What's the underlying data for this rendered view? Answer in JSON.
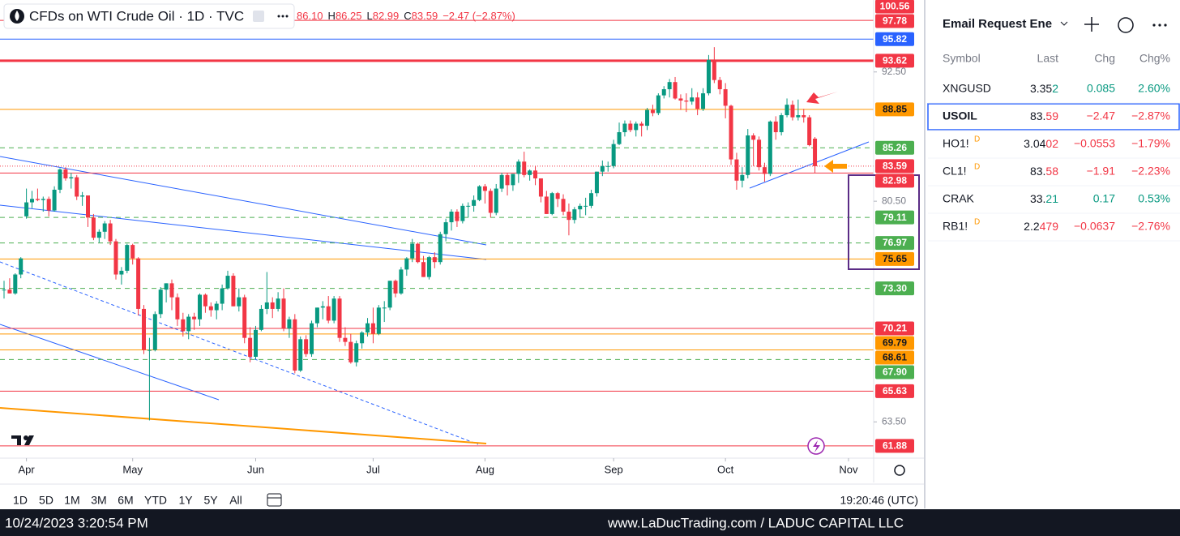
{
  "header": {
    "symbol": "CFDs on WTI Crude Oil · 1D · TVC",
    "ohlc": [
      {
        "value": "86.10"
      },
      {
        "label": "H",
        "value": "86.25"
      },
      {
        "label": "L",
        "value": "82.99"
      },
      {
        "label": "C",
        "value": "83.59"
      }
    ],
    "change": "−2.47 (−2.87%)"
  },
  "chart_data": {
    "type": "candlestick",
    "up_color": "#089981",
    "down_color": "#f23645",
    "log_scale": true,
    "ylim": [
      61.07,
      99.94
    ],
    "yticks": [
      {
        "value": 92.5,
        "label": "92.50"
      },
      {
        "value": 80.5,
        "label": "80.50"
      },
      {
        "value": 63.5,
        "label": "63.50"
      }
    ],
    "xlim": [
      -0.725,
      155.5
    ],
    "xticks": [
      {
        "value": 4,
        "label": "Apr"
      },
      {
        "value": 23,
        "label": "May"
      },
      {
        "value": 45,
        "label": "Jun"
      },
      {
        "value": 66,
        "label": "Jul"
      },
      {
        "value": 86,
        "label": "Aug"
      },
      {
        "value": 109,
        "label": "Sep"
      },
      {
        "value": 129,
        "label": "Oct"
      },
      {
        "value": 151,
        "label": "Nov"
      }
    ],
    "candles": [
      [
        73.2,
        73.9,
        72.5,
        73.2
      ],
      [
        73.2,
        74.1,
        72.9,
        72.9
      ],
      [
        72.9,
        74.5,
        72.8,
        74.4
      ],
      [
        74.4,
        75.8,
        74.1,
        75.7
      ],
      [
        79.2,
        81.6,
        79.0,
        80.4
      ],
      [
        80.4,
        81.4,
        79.9,
        80.7
      ],
      [
        80.7,
        81.6,
        80.5,
        80.6
      ],
      [
        80.6,
        80.9,
        79.6,
        80.7
      ],
      [
        80.7,
        80.9,
        79.2,
        79.7
      ],
      [
        79.7,
        81.8,
        79.6,
        81.5
      ],
      [
        81.5,
        83.4,
        81.2,
        83.3
      ],
      [
        83.3,
        83.5,
        82.3,
        82.5
      ],
      [
        82.5,
        83.0,
        81.6,
        82.6
      ],
      [
        82.6,
        82.8,
        80.6,
        80.9
      ],
      [
        80.9,
        81.3,
        80.1,
        81.0
      ],
      [
        81.0,
        81.0,
        78.3,
        79.1
      ],
      [
        79.1,
        79.4,
        77.2,
        77.4
      ],
      [
        77.4,
        78.1,
        77.0,
        77.9
      ],
      [
        77.9,
        78.8,
        77.3,
        78.6
      ],
      [
        78.6,
        78.9,
        76.8,
        77.1
      ],
      [
        77.1,
        77.3,
        74.0,
        74.4
      ],
      [
        74.4,
        75.0,
        73.6,
        74.7
      ],
      [
        74.7,
        76.9,
        74.5,
        76.8
      ],
      [
        76.8,
        76.9,
        75.2,
        75.7
      ],
      [
        75.7,
        75.8,
        71.2,
        71.7
      ],
      [
        71.7,
        72.0,
        68.3,
        68.6
      ],
      [
        68.6,
        69.5,
        63.6,
        68.6
      ],
      [
        68.6,
        71.5,
        68.5,
        71.3
      ],
      [
        71.3,
        73.4,
        71.0,
        73.2
      ],
      [
        73.2,
        73.7,
        72.2,
        73.7
      ],
      [
        73.7,
        74.0,
        71.6,
        72.6
      ],
      [
        72.6,
        72.9,
        70.4,
        70.9
      ],
      [
        70.9,
        71.4,
        69.6,
        70.0
      ],
      [
        70.0,
        71.3,
        69.4,
        71.1
      ],
      [
        71.1,
        71.4,
        70.1,
        70.9
      ],
      [
        70.9,
        72.9,
        70.4,
        72.8
      ],
      [
        72.8,
        72.9,
        71.4,
        71.9
      ],
      [
        71.9,
        72.2,
        71.1,
        71.6
      ],
      [
        71.6,
        72.3,
        70.9,
        72.1
      ],
      [
        72.1,
        73.6,
        71.6,
        73.3
      ],
      [
        73.3,
        74.7,
        73.2,
        74.3
      ],
      [
        74.3,
        74.5,
        71.9,
        71.9
      ],
      [
        71.9,
        73.3,
        71.5,
        72.6
      ],
      [
        72.6,
        72.8,
        69.1,
        69.5
      ],
      [
        69.5,
        70.3,
        67.7,
        68.1
      ],
      [
        68.1,
        70.4,
        67.9,
        70.1
      ],
      [
        70.1,
        72.0,
        70.0,
        71.7
      ],
      [
        71.7,
        74.6,
        71.3,
        72.2
      ],
      [
        72.2,
        72.6,
        71.0,
        71.7
      ],
      [
        71.7,
        73.0,
        71.5,
        72.5
      ],
      [
        72.5,
        73.3,
        70.0,
        70.2
      ],
      [
        70.2,
        71.1,
        69.5,
        70.9
      ],
      [
        70.9,
        71.3,
        66.9,
        67.1
      ],
      [
        67.1,
        69.6,
        67.0,
        69.4
      ],
      [
        69.4,
        69.7,
        68.1,
        68.3
      ],
      [
        68.3,
        70.8,
        68.1,
        70.6
      ],
      [
        70.6,
        71.8,
        70.3,
        71.8
      ],
      [
        71.8,
        72.3,
        70.9,
        71.9
      ],
      [
        71.9,
        72.7,
        70.6,
        70.8
      ],
      [
        70.8,
        72.7,
        70.6,
        72.5
      ],
      [
        72.5,
        72.7,
        69.2,
        69.5
      ],
      [
        69.5,
        70.3,
        68.9,
        69.2
      ],
      [
        69.2,
        69.8,
        67.6,
        67.7
      ],
      [
        67.7,
        69.3,
        67.4,
        69.1
      ],
      [
        69.1,
        70.0,
        68.7,
        69.9
      ],
      [
        69.9,
        71.0,
        69.6,
        70.6
      ],
      [
        70.6,
        71.8,
        69.1,
        69.8
      ],
      [
        69.8,
        72.0,
        69.7,
        71.8
      ],
      [
        71.8,
        72.3,
        70.7,
        71.8
      ],
      [
        71.8,
        73.9,
        71.6,
        73.9
      ],
      [
        73.9,
        74.0,
        72.6,
        72.9
      ],
      [
        72.9,
        75.0,
        72.8,
        74.8
      ],
      [
        74.8,
        75.8,
        74.3,
        75.7
      ],
      [
        75.7,
        77.3,
        75.4,
        76.9
      ],
      [
        76.9,
        77.0,
        75.3,
        75.4
      ],
      [
        75.4,
        75.9,
        74.2,
        74.2
      ],
      [
        74.2,
        75.9,
        74.0,
        75.8
      ],
      [
        75.8,
        76.2,
        74.9,
        75.4
      ],
      [
        75.4,
        77.9,
        75.2,
        77.7
      ],
      [
        77.7,
        79.0,
        77.1,
        78.7
      ],
      [
        78.7,
        79.8,
        78.0,
        79.6
      ],
      [
        79.6,
        79.8,
        78.3,
        78.8
      ],
      [
        78.8,
        80.3,
        78.6,
        80.1
      ],
      [
        80.1,
        80.4,
        79.1,
        80.1
      ],
      [
        80.1,
        81.0,
        79.6,
        80.6
      ],
      [
        80.6,
        81.9,
        80.5,
        81.8
      ],
      [
        81.8,
        82.0,
        80.3,
        81.4
      ],
      [
        81.4,
        81.6,
        79.1,
        79.5
      ],
      [
        79.5,
        82.0,
        79.3,
        81.6
      ],
      [
        81.6,
        83.0,
        81.3,
        82.8
      ],
      [
        82.8,
        83.0,
        81.0,
        81.9
      ],
      [
        81.9,
        82.9,
        81.4,
        82.9
      ],
      [
        82.9,
        84.2,
        82.1,
        84.0
      ],
      [
        84.0,
        84.9,
        82.6,
        82.8
      ],
      [
        82.8,
        83.3,
        82.3,
        83.2
      ],
      [
        83.2,
        83.6,
        81.9,
        82.5
      ],
      [
        82.5,
        82.5,
        80.4,
        80.9
      ],
      [
        80.9,
        81.4,
        79.4,
        79.4
      ],
      [
        79.4,
        81.3,
        79.3,
        81.2
      ],
      [
        81.2,
        81.3,
        80.0,
        80.7
      ],
      [
        80.7,
        81.1,
        79.3,
        79.6
      ],
      [
        79.6,
        80.3,
        77.6,
        78.9
      ],
      [
        78.9,
        80.0,
        78.6,
        79.8
      ],
      [
        79.8,
        80.3,
        79.1,
        80.1
      ],
      [
        80.1,
        80.8,
        79.3,
        80.1
      ],
      [
        80.1,
        81.5,
        79.9,
        81.2
      ],
      [
        81.2,
        83.1,
        80.9,
        83.1
      ],
      [
        83.1,
        84.1,
        82.7,
        83.6
      ],
      [
        83.6,
        84.0,
        83.1,
        83.6
      ],
      [
        83.6,
        86.0,
        83.4,
        85.6
      ],
      [
        85.6,
        87.6,
        85.5,
        86.7
      ],
      [
        86.7,
        87.8,
        86.3,
        87.5
      ],
      [
        87.5,
        87.8,
        86.7,
        86.9
      ],
      [
        86.9,
        87.7,
        86.3,
        87.5
      ],
      [
        87.5,
        87.7,
        86.3,
        87.3
      ],
      [
        87.3,
        89.0,
        86.9,
        88.8
      ],
      [
        88.8,
        89.3,
        88.2,
        88.5
      ],
      [
        88.5,
        90.4,
        88.3,
        90.2
      ],
      [
        90.2,
        91.1,
        89.9,
        90.8
      ],
      [
        90.8,
        91.8,
        90.0,
        91.5
      ],
      [
        91.5,
        92.0,
        89.8,
        89.9
      ],
      [
        89.9,
        90.3,
        88.8,
        89.7
      ],
      [
        89.7,
        90.4,
        88.6,
        89.6
      ],
      [
        89.6,
        90.9,
        89.3,
        90.0
      ],
      [
        90.0,
        90.5,
        88.3,
        88.9
      ],
      [
        88.9,
        90.9,
        88.7,
        90.4
      ],
      [
        90.4,
        94.2,
        90.2,
        93.7
      ],
      [
        93.7,
        95.0,
        91.4,
        91.7
      ],
      [
        91.7,
        92.0,
        90.3,
        90.8
      ],
      [
        90.8,
        91.4,
        88.0,
        89.2
      ],
      [
        89.2,
        89.3,
        83.7,
        84.2
      ],
      [
        84.2,
        84.8,
        81.5,
        82.3
      ],
      [
        82.3,
        83.5,
        81.7,
        82.8
      ],
      [
        82.8,
        87.0,
        82.5,
        86.4
      ],
      [
        86.4,
        86.6,
        83.6,
        86.0
      ],
      [
        86.0,
        86.3,
        83.2,
        83.5
      ],
      [
        83.5,
        83.9,
        82.2,
        82.9
      ],
      [
        82.9,
        87.8,
        82.7,
        87.7
      ],
      [
        87.7,
        88.2,
        86.0,
        86.7
      ],
      [
        86.7,
        88.5,
        86.4,
        88.3
      ],
      [
        88.3,
        89.9,
        88.1,
        89.3
      ],
      [
        89.3,
        89.7,
        87.8,
        88.1
      ],
      [
        88.1,
        89.8,
        87.8,
        88.3
      ],
      [
        88.3,
        88.9,
        87.6,
        88.1
      ],
      [
        88.1,
        88.3,
        85.4,
        85.5
      ],
      [
        86.1,
        86.25,
        82.99,
        83.59
      ]
    ],
    "levels": [
      {
        "value": 100.56,
        "color": "#f23645"
      },
      {
        "value": 97.78,
        "color": "#f23645"
      },
      {
        "value": 95.82,
        "color": "#2962ff"
      },
      {
        "value": 93.62,
        "color": "#f23645",
        "line_width": 3
      },
      {
        "value": 88.85,
        "color": "#ff9800",
        "text_color": "#131722"
      },
      {
        "value": 85.26,
        "color": "#4caf50",
        "dashed": true
      },
      {
        "value": 83.59,
        "color": "#f23645",
        "dotted": true
      },
      {
        "value": 82.98,
        "color": "#f23645"
      },
      {
        "value": 79.11,
        "color": "#4caf50",
        "dashed": true
      },
      {
        "value": 76.97,
        "color": "#4caf50",
        "dashed": true
      },
      {
        "value": 75.65,
        "color": "#ff9800",
        "text_color": "#131722"
      },
      {
        "value": 73.3,
        "label": "73.30",
        "color": "#4caf50",
        "dashed": true
      },
      {
        "value": 70.21,
        "color": "#f23645"
      },
      {
        "value": 69.79,
        "color": "#ff9800",
        "text_color": "#131722"
      },
      {
        "value": 68.61,
        "color": "#ff9800",
        "text_color": "#131722"
      },
      {
        "value": 67.9,
        "label": "67.90",
        "color": "#4caf50",
        "dashed": true
      },
      {
        "value": 65.63,
        "color": "#f23645"
      },
      {
        "value": 61.88,
        "color": "#f23645"
      }
    ]
  },
  "toolbar": {
    "ranges": [
      "1D",
      "5D",
      "1M",
      "3M",
      "6M",
      "YTD",
      "1Y",
      "5Y",
      "All"
    ],
    "clock": "19:20:46 (UTC)"
  },
  "watchlist": {
    "title": "Email Request Ene",
    "columns": [
      "Symbol",
      "Last",
      "Chg",
      "Chg%"
    ],
    "rows": [
      {
        "symbol": "XNGUSD",
        "last": "3.35",
        "last_tail": "2",
        "chg": "0.085",
        "chg_pct": "2.60%",
        "color": "#089981"
      },
      {
        "symbol": "USOIL",
        "last": "83.",
        "last_tail": "59",
        "chg": "−2.47",
        "chg_pct": "−2.87%",
        "color": "#f23645",
        "selected": true
      },
      {
        "symbol": "HO1!",
        "flag": "D",
        "last": "3.04",
        "last_tail": "02",
        "chg": "−0.0553",
        "chg_pct": "−1.79%",
        "color": "#f23645"
      },
      {
        "symbol": "CL1!",
        "flag": "D",
        "last": "83.",
        "last_tail": "58",
        "chg": "−1.91",
        "chg_pct": "−2.23%",
        "color": "#f23645"
      },
      {
        "symbol": "CRAK",
        "last": "33.",
        "last_tail": "21",
        "chg": "0.17",
        "chg_pct": "0.53%",
        "color": "#089981"
      },
      {
        "symbol": "RB1!",
        "flag": "D",
        "last": "2.2",
        "last_tail": "479",
        "chg": "−0.0637",
        "chg_pct": "−2.76%",
        "color": "#f23645"
      }
    ]
  },
  "footer": {
    "timestamp": "10/24/2023 3:20:54 PM",
    "site": "www.LaDucTrading.com / LADUC CAPITAL LLC"
  }
}
